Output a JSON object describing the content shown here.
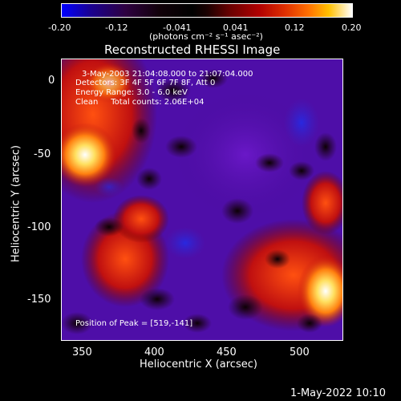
{
  "colorbar": {
    "ticks": [
      "-0.20",
      "-0.12",
      "-0.041",
      "0.041",
      "0.12",
      "0.20"
    ],
    "unit_label": "(photons cm⁻² s⁻¹ asec⁻²)"
  },
  "title": "Reconstructed RHESSI Image",
  "info": {
    "line1": "3-May-2003 21:04:08.000 to 21:07:04.000",
    "line2": "Detectors: 3F 4F 5F 6F 7F 8F, Att 0",
    "line3": "Energy Range: 3.0 - 6.0 keV",
    "line4": "Clean     Total counts: 2.06E+04",
    "peak": "Position of Peak = [519,-141]"
  },
  "axes": {
    "xlabel": "Heliocentric X (arcsec)",
    "ylabel": "Heliocentric Y (arcsec)",
    "xticks": [
      "350",
      "400",
      "450",
      "500"
    ],
    "yticks": [
      "0",
      "-50",
      "-100",
      "-150"
    ]
  },
  "timestamp": "1-May-2022 10:10",
  "colors": {
    "purple": "#5a10b4",
    "deep_purple": "#4a0c9c",
    "blue_patch": "#2e30d8",
    "dark": "#160408",
    "red": "#c01010",
    "orange": "#ff6010",
    "yellow": "#ffd040",
    "white": "#ffffff"
  }
}
